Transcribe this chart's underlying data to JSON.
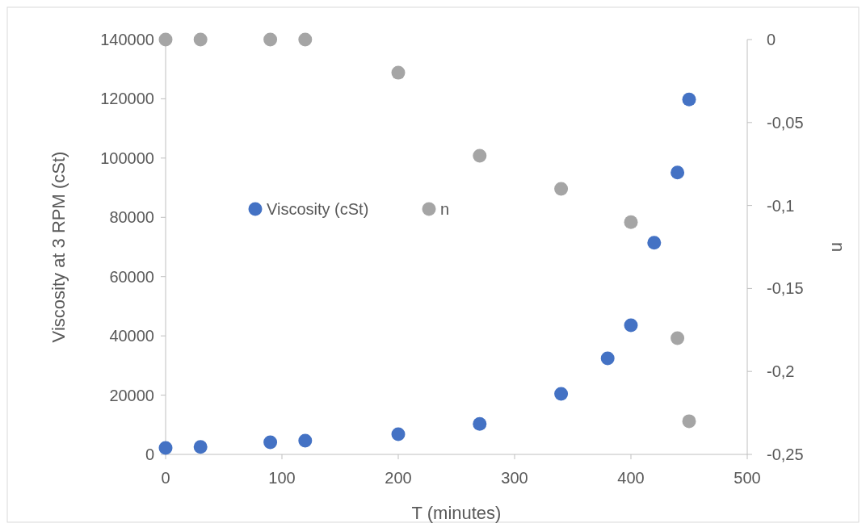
{
  "chart_data": {
    "type": "scatter",
    "xlabel": "T (minutes)",
    "ylabel": "Viscosity at 3 RPM (cSt)",
    "y2label": "n",
    "xlim": [
      0,
      500
    ],
    "xticks": [
      0,
      100,
      200,
      300,
      400,
      500
    ],
    "ylim": [
      0,
      140000
    ],
    "yticks": [
      0,
      20000,
      40000,
      60000,
      80000,
      100000,
      120000,
      140000
    ],
    "y2lim": [
      -0.25,
      0
    ],
    "y2ticks": [
      {
        "value": -0.25,
        "label": "-0,25"
      },
      {
        "value": -0.2,
        "label": "-0,2"
      },
      {
        "value": -0.15,
        "label": "-0,15"
      },
      {
        "value": -0.1,
        "label": "-0,1"
      },
      {
        "value": -0.05,
        "label": "-0,05"
      },
      0
    ],
    "marker": "circle",
    "grid": false,
    "legend": "left",
    "series": [
      {
        "name": "Viscosity (cSt)",
        "color": "#4472c4",
        "x": [
          0,
          30,
          90,
          120,
          200,
          270,
          340,
          380,
          400,
          420,
          440,
          450
        ],
        "values": [
          2200,
          2500,
          4100,
          4600,
          6800,
          10300,
          20400,
          32400,
          43600,
          71400,
          95100,
          119800
        ]
      },
      {
        "name": "n",
        "color": "#a5a5a5",
        "axis": "y2",
        "x": [
          0,
          30,
          90,
          120,
          200,
          270,
          340,
          400,
          440,
          450
        ],
        "values": [
          0,
          0,
          0,
          0,
          -0.02,
          -0.07,
          -0.09,
          -0.11,
          -0.18,
          -0.23
        ]
      }
    ]
  }
}
